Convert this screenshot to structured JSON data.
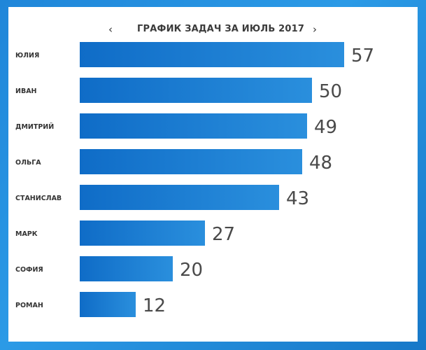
{
  "header": {
    "prev_label": "‹",
    "next_label": "›"
  },
  "colors": {
    "bar_start": "#0f6cc7",
    "bar_end": "#2a8fdd",
    "text": "#333333"
  },
  "chart_data": {
    "type": "bar",
    "orientation": "horizontal",
    "title": "ГРАФИК ЗАДАЧ ЗА ИЮЛЬ 2017",
    "categories": [
      "ЮЛИЯ",
      "ИВАН",
      "ДМИТРИЙ",
      "ОЛЬГА",
      "СТАНИСЛАВ",
      "МАРК",
      "СОФИЯ",
      "РОМАН"
    ],
    "values": [
      57,
      50,
      49,
      48,
      43,
      27,
      20,
      12
    ],
    "xlim": [
      0,
      57
    ],
    "grid": false,
    "xlabel": "",
    "ylabel": ""
  }
}
